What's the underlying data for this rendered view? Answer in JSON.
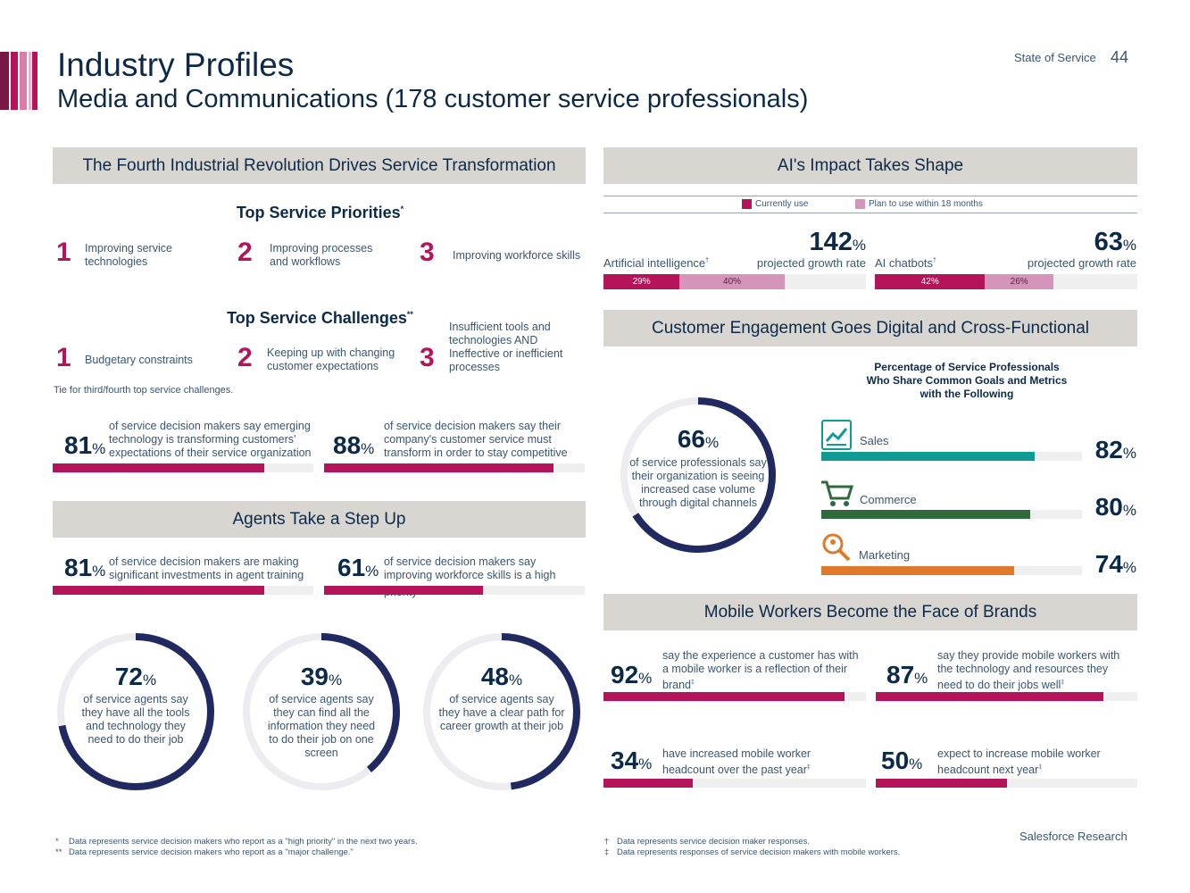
{
  "header": {
    "title": "Industry Profiles",
    "subtitle": "Media and Communications (178 customer service professionals)",
    "report_name": "State of Service",
    "page_number": "44",
    "stripe_colors": [
      "#7a1744",
      "#b5145b",
      "#d77fa8",
      "#e9b5cd",
      "#b5145b"
    ]
  },
  "section1": {
    "band": "The Fourth Industrial Revolution Drives Service Transformation",
    "priorities_title": "Top Service Priorities",
    "priorities_mark": "*",
    "priorities": [
      {
        "rank": "1",
        "label": "Improving service technologies"
      },
      {
        "rank": "2",
        "label": "Improving processes and workflows"
      },
      {
        "rank": "3",
        "label": "Improving workforce skills"
      }
    ],
    "challenges_title": "Top Service Challenges",
    "challenges_mark": "**",
    "challenges": [
      {
        "rank": "1",
        "label": "Budgetary constraints"
      },
      {
        "rank": "2",
        "label": "Keeping up with changing customer expectations"
      },
      {
        "rank": "3",
        "label": "Insufficient tools and technologies AND Ineffective or inefficient processes"
      }
    ],
    "tie_note": "Tie for third/fourth top service challenges.",
    "stats": [
      {
        "value": "81",
        "unit": "%",
        "fraction": 0.81,
        "text": "of service decision makers say emerging technology is transforming customers' expectations of their service organization"
      },
      {
        "value": "88",
        "unit": "%",
        "fraction": 0.88,
        "text": "of service decision makers say their company's customer service must transform in order to stay competitive"
      }
    ]
  },
  "section2": {
    "band": "Agents Take a Step Up",
    "stats": [
      {
        "value": "81",
        "unit": "%",
        "fraction": 0.81,
        "text": "of service decision makers are making significant investments in agent training"
      },
      {
        "value": "61",
        "unit": "%",
        "fraction": 0.61,
        "text": "of service decision makers say improving workforce skills is a high priority",
        "mark": "*"
      }
    ],
    "rings": [
      {
        "value": "72",
        "unit": "%",
        "fraction": 0.72,
        "text": "of service agents say they have all the tools and technology they need to do their job"
      },
      {
        "value": "39",
        "unit": "%",
        "fraction": 0.39,
        "text": "of service agents say they can find all the information they need to do their job on one screen"
      },
      {
        "value": "48",
        "unit": "%",
        "fraction": 0.48,
        "text": "of service agents say they have a clear path for career growth at their job"
      }
    ]
  },
  "section3": {
    "band": "AI's Impact Takes Shape",
    "legend": [
      {
        "label": "Currently use",
        "color": "#b5145b"
      },
      {
        "label": "Plan to use within 18 months",
        "color": "#d595bb"
      }
    ],
    "items": [
      {
        "label": "Artificial intelligence",
        "mark": "†",
        "growth": "142",
        "growth_unit": "%",
        "growth_text": "projected growth rate",
        "current": 29,
        "current_label": "29%",
        "plan": 40,
        "plan_label": "40%"
      },
      {
        "label": "AI chatbots",
        "mark": "†",
        "growth": "63",
        "growth_unit": "%",
        "growth_text": "projected growth rate",
        "current": 42,
        "current_label": "42%",
        "plan": 26,
        "plan_label": "26%"
      }
    ]
  },
  "section4": {
    "band": "Customer Engagement Goes Digital and Cross-Functional",
    "ring": {
      "value": "66",
      "unit": "%",
      "fraction": 0.66,
      "text": "of service professionals say their organization is seeing increased case volume through digital channels"
    },
    "bars_title": "Percentage of Service Professionals Who Share Common Goals and Metrics with the Following",
    "bars": [
      {
        "label": "Sales",
        "icon": "chart-icon",
        "value": "82",
        "unit": "%",
        "fraction": 0.82,
        "color": "#0f9a94"
      },
      {
        "label": "Commerce",
        "icon": "cart-icon",
        "value": "80",
        "unit": "%",
        "fraction": 0.8,
        "color": "#2e6a3c"
      },
      {
        "label": "Marketing",
        "icon": "magnifier-icon",
        "value": "74",
        "unit": "%",
        "fraction": 0.74,
        "color": "#e07a2a"
      }
    ]
  },
  "section5": {
    "band": "Mobile Workers Become the Face of Brands",
    "stats": [
      {
        "value": "92",
        "unit": "%",
        "fraction": 0.92,
        "text": "say the experience a customer has with a mobile worker is a reflection of their brand",
        "mark": "‡"
      },
      {
        "value": "87",
        "unit": "%",
        "fraction": 0.87,
        "text": "say they provide mobile workers with the technology and resources they need to do their jobs well",
        "mark": "‡"
      },
      {
        "value": "34",
        "unit": "%",
        "fraction": 0.34,
        "text": "have increased mobile worker headcount over the past year",
        "mark": "‡"
      },
      {
        "value": "50",
        "unit": "%",
        "fraction": 0.5,
        "text": "expect to increase mobile worker headcount next year",
        "mark": "‡"
      }
    ]
  },
  "footnotes": {
    "left": [
      {
        "mark": "*",
        "text": "Data represents service decision makers who report as a \"high priority\" in the next two years."
      },
      {
        "mark": "**",
        "text": "Data represents service decision makers who report as a \"major challenge.\""
      }
    ],
    "right": [
      {
        "mark": "†",
        "text": "Data represents service decision maker responses."
      },
      {
        "mark": "‡",
        "text": "Data represents responses of service decision makers with mobile workers."
      }
    ]
  },
  "footer": {
    "brand": "Salesforce Research"
  }
}
